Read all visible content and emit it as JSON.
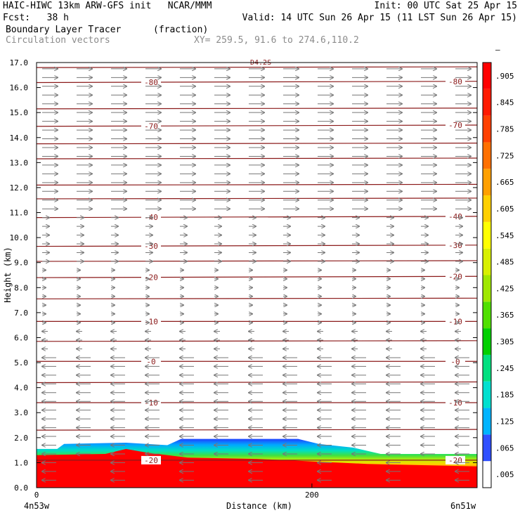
{
  "header": {
    "line1_left": "HAIC-HIWC 13km ARW-GFS init   NCAR/MMM",
    "line1_right": "Init: 00 UTC Sat 25 Apr 15",
    "line2_left": "Fcst:   38 h",
    "line2_right": "Valid: 14 UTC Sun 26 Apr 15 (11 LST Sun 26 Apr 15)",
    "line3_field": "Boundary Layer Tracer",
    "line3_unit": "(fraction)",
    "line4_field": "Circulation vectors",
    "line4_xy": "XY= 259.5, 91.6 to 274.6,110.2"
  },
  "colors": {
    "contour": "#8b1a1a",
    "vector": "#777777",
    "header_gray": "#8c8c8c"
  },
  "chart_data": {
    "type": "heatmap",
    "title": "Boundary Layer Tracer",
    "units": "(fraction)",
    "xlabel": "Distance (km)",
    "ylabel": "Height (km)",
    "xlim": [
      0,
      320
    ],
    "ylim": [
      0.0,
      17.0
    ],
    "x_ticks": [
      {
        "value": 0,
        "label": "0"
      },
      {
        "value": 200,
        "label": "200"
      }
    ],
    "x_end_labels": {
      "left": "4n53w",
      "right": "6n51w"
    },
    "y_ticks": [
      "0.0",
      "1.0",
      "2.0",
      "3.0",
      "4.0",
      "5.0",
      "6.0",
      "7.0",
      "8.0",
      "9.0",
      "10.0",
      "11.0",
      "12.0",
      "13.0",
      "14.0",
      "15.0",
      "16.0",
      "17.0"
    ],
    "colorbar": {
      "labels": [
        ".005",
        ".065",
        ".125",
        ".185",
        ".245",
        ".305",
        ".365",
        ".425",
        ".485",
        ".545",
        ".605",
        ".665",
        ".725",
        ".785",
        ".845",
        ".905",
        "–"
      ],
      "colors": [
        "#ffffff",
        "#3050ff",
        "#00b4ff",
        "#00e0d0",
        "#00e080",
        "#00d000",
        "#50e000",
        "#a0e800",
        "#d8f000",
        "#ffff00",
        "#ffd000",
        "#ffa000",
        "#ff7000",
        "#ff4000",
        "#ff1a00",
        "#ff0000"
      ]
    },
    "temperature_contours": [
      {
        "label": "80",
        "height_left": 16.2,
        "height_right": 16.25
      },
      {
        "label": "70",
        "height_left": 14.45,
        "height_right": 14.5
      },
      {
        "label": "40",
        "height_left": 10.8,
        "height_right": 10.85
      },
      {
        "label": "30",
        "height_left": 9.65,
        "height_right": 9.7
      },
      {
        "label": "20",
        "height_left": 8.4,
        "height_right": 8.45
      },
      {
        "label": "10",
        "height_left": 6.65,
        "height_right": 6.65
      },
      {
        "label": "0",
        "height_left": 5.05,
        "height_right": 5.05
      },
      {
        "label": "10",
        "height_left": 3.4,
        "height_right": 3.4
      },
      {
        "label": "20",
        "height_left": 1.1,
        "height_right": 1.1
      }
    ],
    "other_contours": [
      16.8,
      15.15,
      13.75,
      13.15,
      12.1,
      11.55,
      9.05,
      7.55,
      5.85,
      4.2,
      2.3
    ],
    "top_label": "D4.2S",
    "tracer_top_profile": [
      {
        "x": 0,
        "h": 1.55
      },
      {
        "x": 15,
        "h": 1.55
      },
      {
        "x": 20,
        "h": 1.75
      },
      {
        "x": 65,
        "h": 1.8
      },
      {
        "x": 95,
        "h": 1.7
      },
      {
        "x": 105,
        "h": 1.95
      },
      {
        "x": 190,
        "h": 1.95
      },
      {
        "x": 205,
        "h": 1.75
      },
      {
        "x": 230,
        "h": 1.6
      },
      {
        "x": 250,
        "h": 1.35
      },
      {
        "x": 320,
        "h": 1.35
      }
    ],
    "red_top_profile": [
      {
        "x": 0,
        "h": 1.3
      },
      {
        "x": 50,
        "h": 1.35
      },
      {
        "x": 65,
        "h": 1.55
      },
      {
        "x": 80,
        "h": 1.4
      },
      {
        "x": 110,
        "h": 1.2
      },
      {
        "x": 160,
        "h": 1.15
      },
      {
        "x": 200,
        "h": 1.05
      },
      {
        "x": 240,
        "h": 0.95
      },
      {
        "x": 320,
        "h": 0.85
      }
    ]
  }
}
